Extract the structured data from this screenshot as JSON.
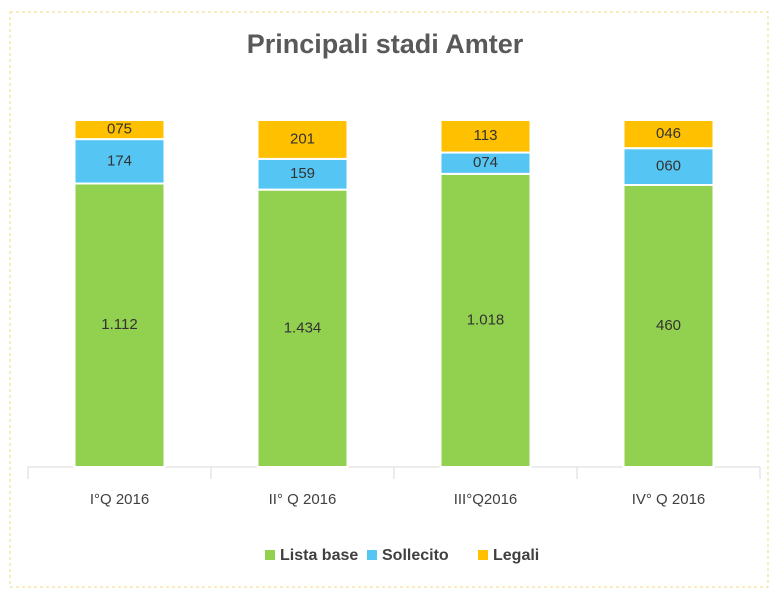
{
  "chart_data": {
    "type": "bar",
    "stacking": "percent",
    "title": "Principali stadi Amter",
    "categories": [
      "I°Q 2016",
      "II° Q 2016",
      "III°Q2016",
      "IV° Q 2016"
    ],
    "series": [
      {
        "name": "Lista base",
        "color": "#92d050",
        "values": [
          1112,
          1434,
          1018,
          460
        ],
        "value_labels": [
          "1.112",
          "1.434",
          "1.018",
          "460"
        ]
      },
      {
        "name": "Sollecito",
        "color": "#55c6f3",
        "values": [
          174,
          159,
          74,
          60
        ],
        "value_labels": [
          "174",
          "159",
          "074",
          "060"
        ]
      },
      {
        "name": "Legali",
        "color": "#ffc000",
        "values": [
          75,
          201,
          113,
          46
        ],
        "value_labels": [
          "075",
          "201",
          "113",
          "046"
        ]
      }
    ],
    "legend": "bottom"
  }
}
